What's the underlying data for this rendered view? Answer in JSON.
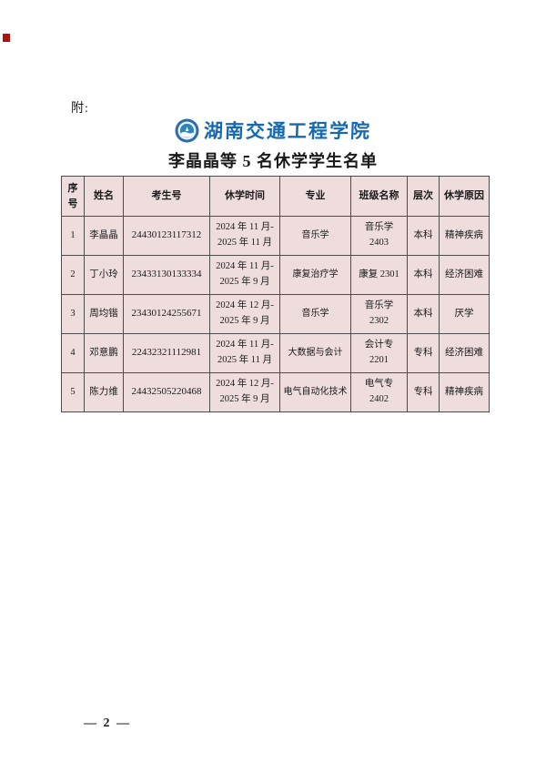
{
  "page": {
    "attachment_label": "附:",
    "page_number": "— 2 —"
  },
  "logo": {
    "school_name": "湖南交通工程学院"
  },
  "title": "李晶晶等 5 名休学学生名单",
  "table": {
    "columns": [
      "序号",
      "姓名",
      "考生号",
      "休学时间",
      "专业",
      "班级名称",
      "层次",
      "休学原因"
    ],
    "rows": [
      {
        "no": "1",
        "name": "李晶晶",
        "exam_no": "24430123117312",
        "leave_period": [
          "2024 年 11 月-",
          "2025 年 11 月"
        ],
        "major": "音乐学",
        "class_name": [
          "音乐学",
          "2403"
        ],
        "level": "本科",
        "reason": "精神疾病"
      },
      {
        "no": "2",
        "name": "丁小玲",
        "exam_no": "23433130133334",
        "leave_period": [
          "2024 年 11 月-",
          "2025 年 9 月"
        ],
        "major": "康复治疗学",
        "class_name": [
          "康复 2301"
        ],
        "level": "本科",
        "reason": "经济困难"
      },
      {
        "no": "3",
        "name": "周均锴",
        "exam_no": "23430124255671",
        "leave_period": [
          "2024 年 12 月-",
          "2025 年 9 月"
        ],
        "major": "音乐学",
        "class_name": [
          "音乐学",
          "2302"
        ],
        "level": "本科",
        "reason": "厌学"
      },
      {
        "no": "4",
        "name": "邓意鹏",
        "exam_no": "22432321112981",
        "leave_period": [
          "2024 年 11 月-",
          "2025 年 11 月"
        ],
        "major": "大数据与会计",
        "class_name": [
          "会计专",
          "2201"
        ],
        "level": "专科",
        "reason": "经济困难"
      },
      {
        "no": "5",
        "name": "陈力维",
        "exam_no": "24432505220468",
        "leave_period": [
          "2024 年 12 月-",
          "2025 年 9 月"
        ],
        "major": "电气自动化技术",
        "class_name": [
          "电气专",
          "2402"
        ],
        "level": "专科",
        "reason": "精神疾病"
      }
    ]
  },
  "colors": {
    "cell_background": "#efdddd",
    "logo_blue": "#1668b0",
    "red_mark": "#b01111"
  }
}
